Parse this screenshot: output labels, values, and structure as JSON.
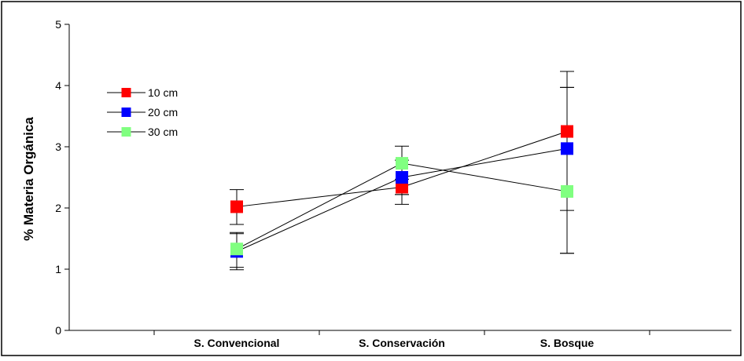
{
  "chart_data": {
    "type": "line",
    "title": "",
    "xlabel": "",
    "ylabel": "% Materia Orgánica",
    "categories": [
      "S. Convencional",
      "S. Conservación",
      "S. Bosque"
    ],
    "ylim": [
      0,
      5
    ],
    "yticks": [
      "0",
      "1",
      "2",
      "3",
      "4",
      "5"
    ],
    "grid": false,
    "legend_position": "top-left",
    "series": [
      {
        "name": "10 cm",
        "color": "#ff0000",
        "values": [
          2.02,
          2.34,
          3.25
        ],
        "error_low": [
          1.73,
          2.22,
          1.26
        ],
        "error_high": [
          2.3,
          2.47,
          4.23
        ]
      },
      {
        "name": "20 cm",
        "color": "#0000ff",
        "values": [
          1.29,
          2.5,
          2.97
        ],
        "error_low": [
          0.99,
          2.22,
          1.96
        ],
        "error_high": [
          1.58,
          2.78,
          3.97
        ]
      },
      {
        "name": "30 cm",
        "color": "#80ff80",
        "values": [
          1.33,
          2.73,
          2.27
        ],
        "error_low": [
          1.03,
          2.06,
          1.26
        ],
        "error_high": [
          1.6,
          3.01,
          3.97
        ]
      }
    ]
  }
}
